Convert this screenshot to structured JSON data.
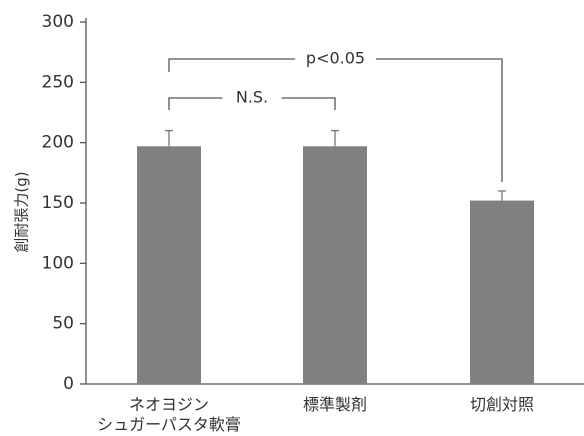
{
  "chart_data": {
    "type": "bar",
    "title": "",
    "ylabel": "創耐張力(g)",
    "ylim": [
      0,
      300
    ],
    "yticks": [
      0,
      50,
      100,
      150,
      200,
      250,
      300
    ],
    "categories": [
      [
        "ネオヨジン",
        "シュガーパスタ軟膏"
      ],
      [
        "標準製剤"
      ],
      [
        "切創対照"
      ]
    ],
    "values": [
      197,
      197,
      152
    ],
    "errors": [
      13,
      13,
      8
    ],
    "bar_color": "#808080",
    "grid": false,
    "annotations": [
      {
        "label": "N.S.",
        "from": 0,
        "to": 1
      },
      {
        "label": "p<0.05",
        "from": 0,
        "to": 2
      }
    ]
  }
}
